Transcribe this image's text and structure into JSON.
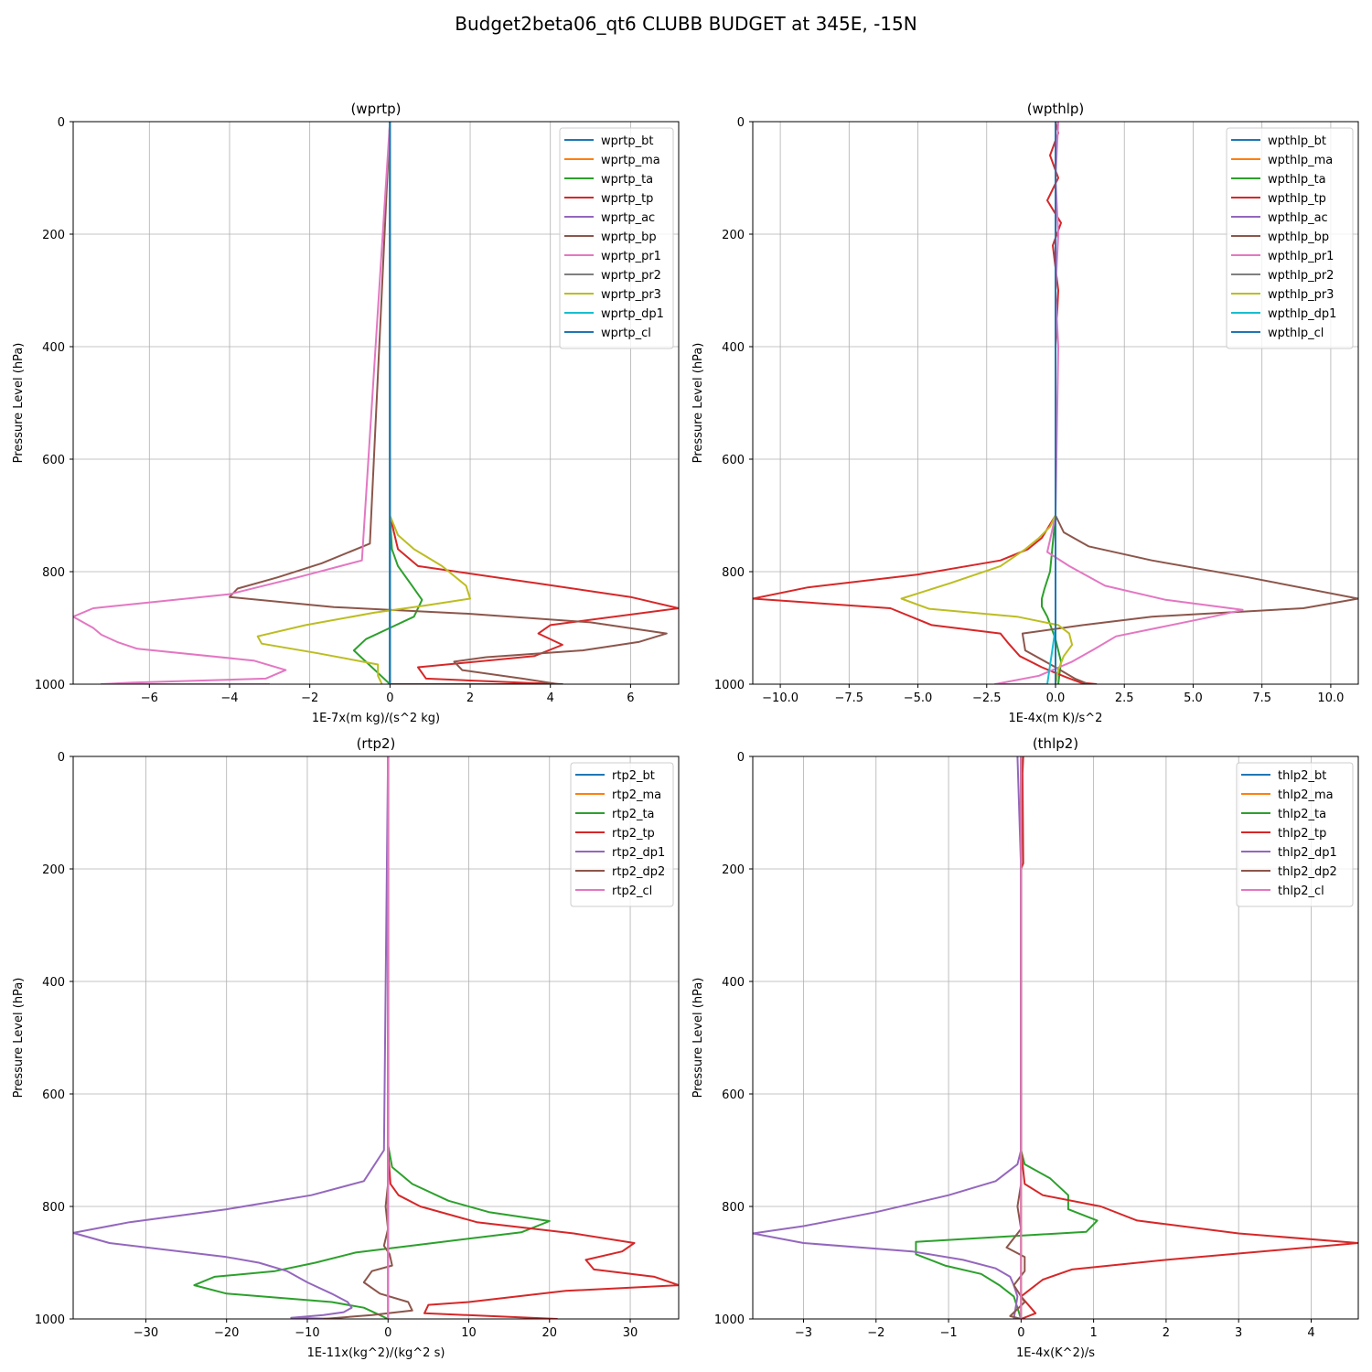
{
  "title": "Budget2beta06_qt6 CLUBB BUDGET at 345E, -15N",
  "colors": [
    "#1f77b4",
    "#ff7f0e",
    "#2ca02c",
    "#d62728",
    "#9467bd",
    "#8c564b",
    "#e377c2",
    "#7f7f7f",
    "#bcbd22",
    "#17becf",
    "#1f77b4"
  ],
  "chart_data": [
    {
      "type": "line",
      "title": "(wprtp)",
      "xlabel": "1E-7x(m kg)/(s^2 kg)",
      "ylabel": "Pressure Level (hPa)",
      "xlim": [
        -7.9,
        7.2
      ],
      "ylim": [
        1000,
        0
      ],
      "y_inverted": true,
      "xticks": [
        -6,
        -4,
        -2,
        0,
        2,
        4,
        6
      ],
      "yticks": [
        0,
        200,
        400,
        600,
        800,
        1000
      ],
      "xtick_labels": [
        "−6",
        "−4",
        "−2",
        "0",
        "2",
        "4",
        "6"
      ],
      "ytick_labels": [
        "0",
        "200",
        "400",
        "600",
        "800",
        "1000"
      ],
      "grid": true,
      "legend_position": "top-right",
      "series": [
        {
          "name": "wprtp_bt",
          "x": [
            0,
            0,
            0,
            0
          ],
          "y": [
            0,
            400,
            800,
            1000
          ]
        },
        {
          "name": "wprtp_ma",
          "x": [
            0,
            0,
            0,
            0
          ],
          "y": [
            0,
            400,
            800,
            1000
          ]
        },
        {
          "name": "wprtp_ta",
          "x": [
            0,
            0,
            0.05,
            0.2,
            0.5,
            0.8,
            0.6,
            0,
            -0.6,
            -0.9,
            -0.6,
            -0.3,
            0
          ],
          "y": [
            0,
            700,
            760,
            790,
            820,
            850,
            880,
            900,
            920,
            940,
            960,
            980,
            1000
          ]
        },
        {
          "name": "wprtp_tp",
          "x": [
            0,
            0,
            0.2,
            0.7,
            3.6,
            6.0,
            7.2,
            4.0,
            3.7,
            4.3,
            3.6,
            0.7,
            0.9,
            3.5,
            4.3,
            0
          ],
          "y": [
            0,
            700,
            760,
            790,
            820,
            845,
            865,
            895,
            910,
            930,
            950,
            970,
            990,
            998,
            1000,
            1000
          ]
        },
        {
          "name": "wprtp_ac",
          "x": [
            0,
            0,
            0
          ],
          "y": [
            0,
            500,
            1000
          ]
        },
        {
          "name": "wprtp_bp",
          "x": [
            0,
            -0.5,
            -1.7,
            -2.8,
            -3.8,
            -4.0,
            -1.4,
            2.0,
            5.0,
            6.9,
            6.2,
            4.8,
            2.4,
            1.6,
            1.8,
            3.3,
            4.2
          ],
          "y": [
            0,
            750,
            785,
            810,
            830,
            845,
            863,
            875,
            890,
            910,
            925,
            940,
            952,
            960,
            975,
            990,
            1000
          ]
        },
        {
          "name": "wprtp_pr1",
          "x": [
            0,
            -0.7,
            -2.3,
            -4.0,
            -7.4,
            -7.9,
            -7.4,
            -7.2,
            -6.8,
            -6.3,
            -3.4,
            -2.6,
            -3.1,
            -6.4,
            -7.2,
            -3.0
          ],
          "y": [
            0,
            780,
            810,
            840,
            865,
            880,
            900,
            912,
            925,
            937,
            958,
            975,
            990,
            997,
            1000,
            1000
          ]
        },
        {
          "name": "wprtp_pr2",
          "x": [
            0,
            0,
            0
          ],
          "y": [
            0,
            500,
            1000
          ]
        },
        {
          "name": "wprtp_pr3",
          "x": [
            0,
            0,
            0.2,
            0.6,
            1.3,
            1.9,
            2.0,
            0.9,
            -0.4,
            -2.1,
            -3.3,
            -3.2,
            -1.8,
            -0.3,
            -0.3,
            -0.2
          ],
          "y": [
            0,
            700,
            735,
            760,
            790,
            825,
            848,
            860,
            873,
            895,
            915,
            928,
            945,
            965,
            985,
            1000
          ]
        },
        {
          "name": "wprtp_dp1",
          "x": [
            0,
            0,
            0
          ],
          "y": [
            0,
            500,
            1000
          ]
        },
        {
          "name": "wprtp_cl",
          "x": [
            0,
            0,
            0,
            0,
            0
          ],
          "y": [
            0,
            300,
            600,
            900,
            1000
          ]
        }
      ]
    },
    {
      "type": "line",
      "title": "(wpthlp)",
      "xlabel": "1E-4x(m K)/s^2",
      "ylabel": "Pressure Level (hPa)",
      "xlim": [
        -11,
        11
      ],
      "ylim": [
        1000,
        0
      ],
      "y_inverted": true,
      "xticks": [
        -10,
        -7.5,
        -5,
        -2.5,
        0,
        2.5,
        5,
        7.5,
        10
      ],
      "yticks": [
        0,
        200,
        400,
        600,
        800,
        1000
      ],
      "xtick_labels": [
        "−10.0",
        "−7.5",
        "−5.0",
        "−2.5",
        "0.0",
        "2.5",
        "5.0",
        "7.5",
        "10.0"
      ],
      "ytick_labels": [
        "0",
        "200",
        "400",
        "600",
        "800",
        "1000"
      ],
      "grid": true,
      "legend_position": "top-right",
      "series": [
        {
          "name": "wpthlp_bt",
          "x": [
            0,
            0,
            0
          ],
          "y": [
            0,
            500,
            1000
          ]
        },
        {
          "name": "wpthlp_ma",
          "x": [
            0,
            0,
            0
          ],
          "y": [
            0,
            500,
            1000
          ]
        },
        {
          "name": "wpthlp_ta",
          "x": [
            0,
            0,
            0,
            -0.2,
            -0.4,
            -0.5,
            -0.5,
            -0.3,
            0,
            0.2,
            0.1
          ],
          "y": [
            0,
            500,
            700,
            800,
            830,
            848,
            862,
            880,
            920,
            960,
            1000
          ]
        },
        {
          "name": "wpthlp_tp",
          "x": [
            0,
            0.1,
            -0.2,
            0.1,
            -0.3,
            0.2,
            -0.1,
            0.1,
            0,
            0,
            -0.5,
            -1.0,
            -2.0,
            -5.0,
            -9.0,
            -11.0,
            -6.0,
            -4.5,
            -2.0,
            -1.7,
            -1.3,
            -0.5,
            0.4,
            0.9,
            1.5
          ],
          "y": [
            0,
            20,
            60,
            100,
            140,
            180,
            220,
            300,
            400,
            700,
            740,
            760,
            780,
            805,
            828,
            848,
            865,
            895,
            910,
            928,
            950,
            970,
            988,
            997,
            1000
          ]
        },
        {
          "name": "wpthlp_ac",
          "x": [
            0,
            0,
            0
          ],
          "y": [
            0,
            500,
            1000
          ]
        },
        {
          "name": "wpthlp_bp",
          "x": [
            0,
            0,
            0.3,
            1.2,
            3.5,
            7.0,
            11.0,
            9.0,
            3.5,
            1.0,
            -1.2,
            -1.1,
            0,
            0.7,
            1.2
          ],
          "y": [
            0,
            700,
            730,
            755,
            780,
            810,
            848,
            865,
            880,
            895,
            910,
            940,
            970,
            990,
            1000
          ]
        },
        {
          "name": "wpthlp_pr1",
          "x": [
            0.1,
            0,
            0.1,
            0,
            0.1,
            0,
            -0.3,
            0.5,
            1.8,
            4.0,
            6.8,
            5.7,
            2.2,
            1.4,
            0.6,
            -0.6,
            -2.2,
            -0.3
          ],
          "y": [
            0,
            100,
            200,
            300,
            400,
            700,
            765,
            790,
            825,
            850,
            868,
            880,
            915,
            938,
            960,
            985,
            1000,
            1000
          ]
        },
        {
          "name": "wpthlp_pr2",
          "x": [
            0,
            0,
            0
          ],
          "y": [
            0,
            500,
            1000
          ]
        },
        {
          "name": "wpthlp_pr3",
          "x": [
            0,
            0,
            -0.2,
            -0.6,
            -1.1,
            -2.0,
            -3.8,
            -5.6,
            -4.6,
            -1.4,
            0.1,
            0.5,
            0.6,
            0.3,
            0.1,
            0
          ],
          "y": [
            0,
            700,
            720,
            740,
            760,
            790,
            820,
            848,
            866,
            880,
            895,
            910,
            930,
            950,
            975,
            1000
          ]
        },
        {
          "name": "wpthlp_dp1",
          "x": [
            0,
            0,
            -0.3
          ],
          "y": [
            0,
            900,
            1000
          ]
        },
        {
          "name": "wpthlp_cl",
          "x": [
            0,
            0,
            0,
            0,
            0
          ],
          "y": [
            0,
            300,
            600,
            900,
            1000
          ]
        }
      ]
    },
    {
      "type": "line",
      "title": "(rtp2)",
      "xlabel": "1E-11x(kg^2)/(kg^2 s)",
      "ylabel": "Pressure Level (hPa)",
      "xlim": [
        -39,
        36
      ],
      "ylim": [
        1000,
        0
      ],
      "y_inverted": true,
      "xticks": [
        -30,
        -20,
        -10,
        0,
        10,
        20,
        30
      ],
      "yticks": [
        0,
        200,
        400,
        600,
        800,
        1000
      ],
      "xtick_labels": [
        "−30",
        "−20",
        "−10",
        "0",
        "10",
        "20",
        "30"
      ],
      "ytick_labels": [
        "0",
        "200",
        "400",
        "600",
        "800",
        "1000"
      ],
      "grid": true,
      "legend_position": "top-right",
      "series": [
        {
          "name": "rtp2_bt",
          "x": [
            0,
            0,
            0
          ],
          "y": [
            0,
            500,
            1000
          ]
        },
        {
          "name": "rtp2_ma",
          "x": [
            0,
            0,
            0
          ],
          "y": [
            0,
            500,
            1000
          ]
        },
        {
          "name": "rtp2_ta",
          "x": [
            0,
            0,
            0.5,
            3.0,
            7.5,
            12.5,
            20.0,
            16.5,
            5.0,
            -4.0,
            -9.0,
            -14.0,
            -21.5,
            -24.0,
            -20.0,
            -7.0,
            -3.0,
            -1.5,
            0
          ],
          "y": [
            0,
            690,
            730,
            760,
            790,
            810,
            826,
            846,
            866,
            882,
            900,
            915,
            925,
            940,
            955,
            970,
            980,
            990,
            1000
          ]
        },
        {
          "name": "rtp2_tp",
          "x": [
            0,
            0,
            0.3,
            1.3,
            4.0,
            11.0,
            23.0,
            30.5,
            29.0,
            24.5,
            25.5,
            33.0,
            36.0,
            22.0,
            10.0,
            5.0,
            4.5,
            21.0
          ],
          "y": [
            0,
            700,
            760,
            780,
            800,
            828,
            848,
            865,
            880,
            895,
            912,
            925,
            940,
            950,
            970,
            975,
            990,
            1000
          ]
        },
        {
          "name": "rtp2_dp1",
          "x": [
            0,
            -0.5,
            -3.0,
            -9.5,
            -20.0,
            -32.0,
            -39.0,
            -34.5,
            -20.0,
            -16.0,
            -12.5,
            -10.0,
            -7.0,
            -5.0,
            -4.5,
            -5.5,
            -8.0,
            -12.0,
            -6.0
          ],
          "y": [
            0,
            700,
            755,
            780,
            805,
            828,
            847,
            865,
            890,
            900,
            915,
            935,
            955,
            970,
            980,
            988,
            993,
            998,
            1000
          ]
        },
        {
          "name": "rtp2_dp2",
          "x": [
            0,
            0,
            -0.3,
            0,
            -0.5,
            0.2,
            0.5,
            -2.0,
            -3.0,
            -1.0,
            2.5,
            3.0,
            -2.0,
            -8.0
          ],
          "y": [
            0,
            760,
            800,
            840,
            870,
            885,
            905,
            915,
            935,
            955,
            970,
            985,
            993,
            1000
          ]
        },
        {
          "name": "rtp2_cl",
          "x": [
            0,
            0,
            0,
            0,
            0
          ],
          "y": [
            0,
            300,
            600,
            900,
            1000
          ]
        }
      ]
    },
    {
      "type": "line",
      "title": "(thlp2)",
      "xlabel": "1E-4x(K^2)/s",
      "ylabel": "Pressure Level (hPa)",
      "xlim": [
        -3.7,
        4.65
      ],
      "ylim": [
        1000,
        0
      ],
      "y_inverted": true,
      "xticks": [
        -3,
        -2,
        -1,
        0,
        1,
        2,
        3,
        4
      ],
      "yticks": [
        0,
        200,
        400,
        600,
        800,
        1000
      ],
      "xtick_labels": [
        "−3",
        "−2",
        "−1",
        "0",
        "1",
        "2",
        "3",
        "4"
      ],
      "ytick_labels": [
        "0",
        "200",
        "400",
        "600",
        "800",
        "1000"
      ],
      "grid": true,
      "legend_position": "top-right",
      "series": [
        {
          "name": "thlp2_bt",
          "x": [
            0,
            0,
            0
          ],
          "y": [
            0,
            500,
            1000
          ]
        },
        {
          "name": "thlp2_ma",
          "x": [
            0,
            0,
            0
          ],
          "y": [
            0,
            500,
            1000
          ]
        },
        {
          "name": "thlp2_ta",
          "x": [
            0,
            0,
            0.05,
            0.4,
            0.65,
            0.65,
            1.05,
            0.9,
            -1.45,
            -1.45,
            -1.05,
            -0.55,
            -0.3,
            -0.1,
            0
          ],
          "y": [
            0,
            700,
            725,
            750,
            780,
            805,
            825,
            845,
            863,
            885,
            905,
            920,
            940,
            960,
            1000
          ]
        },
        {
          "name": "thlp2_tp",
          "x": [
            0.03,
            0.02,
            0.03,
            0,
            0,
            0.05,
            0.3,
            1.1,
            1.6,
            3.0,
            4.65,
            2.0,
            0.7,
            0.3,
            0.15,
            0,
            0.2,
            0
          ],
          "y": [
            0,
            30,
            190,
            200,
            700,
            760,
            780,
            800,
            825,
            848,
            865,
            895,
            912,
            930,
            945,
            960,
            990,
            1000
          ]
        },
        {
          "name": "thlp2_dp1",
          "x": [
            -0.05,
            0,
            0,
            -0.05,
            -0.35,
            -1.0,
            -2.0,
            -3.0,
            -3.7,
            -3.0,
            -1.5,
            -0.8,
            -0.35,
            -0.15,
            -0.1,
            -0.05,
            -0.1
          ],
          "y": [
            0,
            200,
            700,
            725,
            755,
            780,
            810,
            835,
            848,
            865,
            880,
            895,
            910,
            925,
            940,
            960,
            1000
          ]
        },
        {
          "name": "thlp2_dp2",
          "x": [
            0,
            0,
            -0.05,
            0,
            -0.2,
            0.05,
            0.05,
            -0.1,
            0.05,
            -0.15,
            0
          ],
          "y": [
            0,
            760,
            800,
            840,
            873,
            890,
            915,
            940,
            970,
            995,
            1000
          ]
        },
        {
          "name": "thlp2_cl",
          "x": [
            0,
            0,
            0,
            0,
            0
          ],
          "y": [
            0,
            300,
            600,
            900,
            1000
          ]
        }
      ]
    }
  ]
}
